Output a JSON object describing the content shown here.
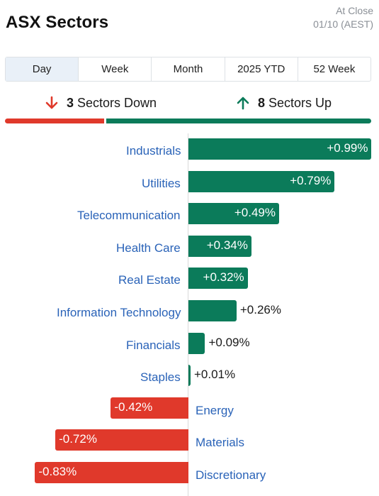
{
  "header": {
    "title": "ASX Sectors",
    "close_line1": "At Close",
    "close_line2": "01/10 (AEST)"
  },
  "tabs": [
    {
      "label": "Day",
      "active": true
    },
    {
      "label": "Week",
      "active": false
    },
    {
      "label": "Month",
      "active": false
    },
    {
      "label": "2025 YTD",
      "active": false
    },
    {
      "label": "52 Week",
      "active": false
    }
  ],
  "summary": {
    "down_count": "3",
    "down_label": "Sectors Down",
    "up_count": "8",
    "up_label": "Sectors Up",
    "down_color": "#e0392b",
    "up_color": "#0b7b5a"
  },
  "chart_data": {
    "type": "bar",
    "orientation": "horizontal",
    "unit": "%",
    "categories": [
      "Industrials",
      "Utilities",
      "Telecommunication",
      "Health Care",
      "Real Estate",
      "Information Technology",
      "Financials",
      "Staples",
      "Energy",
      "Materials",
      "Discretionary"
    ],
    "values": [
      0.99,
      0.79,
      0.49,
      0.34,
      0.32,
      0.26,
      0.09,
      0.01,
      -0.42,
      -0.72,
      -0.83
    ],
    "labels": [
      "+0.99%",
      "+0.79%",
      "+0.49%",
      "+0.34%",
      "+0.32%",
      "+0.26%",
      "+0.09%",
      "+0.01%",
      "-0.42%",
      "-0.72%",
      "-0.83%"
    ],
    "positive_color": "#0b7b5a",
    "negative_color": "#e0392b",
    "label_color": "#2a63b8"
  }
}
